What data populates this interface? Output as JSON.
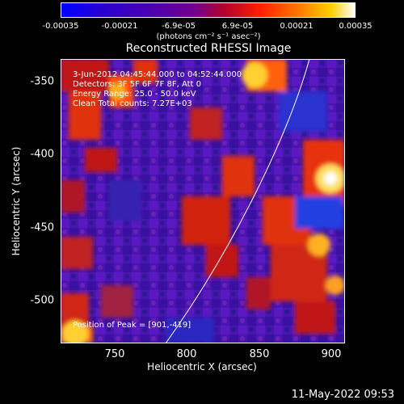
{
  "colorbar": {
    "ticks": [
      "-0.00035",
      "-0.00021",
      "-6.9e-05",
      "6.9e-05",
      "0.00021",
      "0.00035"
    ],
    "units": "(photons cm⁻² s⁻¹ asec⁻²)"
  },
  "title": "Reconstructed RHESSI Image",
  "annotations": {
    "time": "3-Jun-2012 04:45:44.000 to 04:52:44.000",
    "detectors": "Detectors: 3F 5F 6F 7F 8F, Att 0",
    "energy": "Energy Range: 25.0 - 50.0 keV",
    "clean": "Clean     Total counts: 7.27E+03",
    "peak": "Position of Peak = [901,-419]"
  },
  "axes": {
    "xlabel": "Heliocentric X (arcsec)",
    "ylabel": "Heliocentric Y (arcsec)",
    "xticks": [
      "750",
      "800",
      "850",
      "900"
    ],
    "yticks": [
      "-350",
      "-400",
      "-450",
      "-500"
    ]
  },
  "datestamp": "11-May-2022 09:53",
  "colors": {
    "background": "#000000",
    "text": "#ffffff",
    "low": "#0000ff",
    "mid": "#5a10a0",
    "high": "#ff2000",
    "peak": "#ffffff"
  }
}
